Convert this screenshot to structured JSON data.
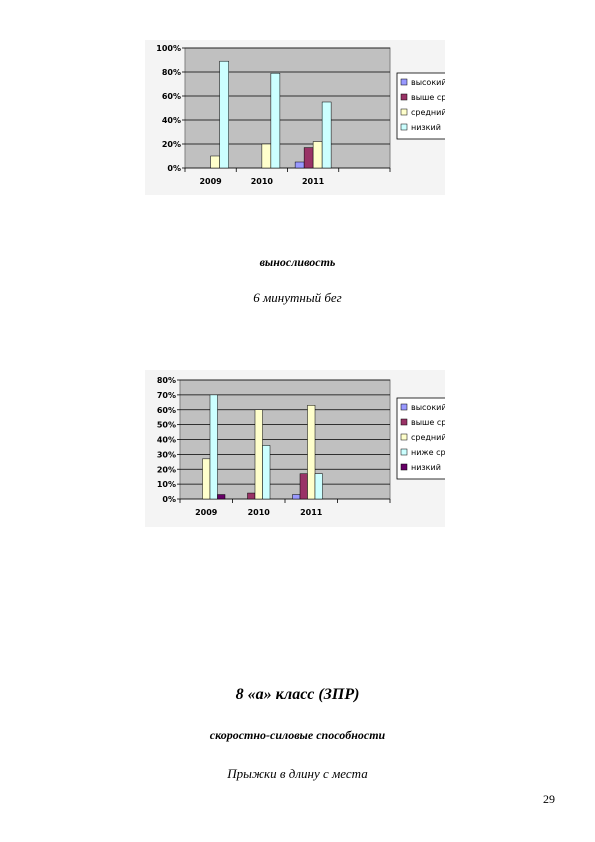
{
  "chart_data": [
    {
      "type": "bar",
      "categories": [
        "2009",
        "2010",
        "2011"
      ],
      "ylim": [
        0,
        100
      ],
      "yticks": [
        "0%",
        "20%",
        "40%",
        "60%",
        "80%",
        "100%"
      ],
      "ytick_values": [
        0,
        20,
        40,
        60,
        80,
        100
      ],
      "grid": true,
      "legend_position": "right",
      "series": [
        {
          "name": "высокий",
          "color": "#9999ff",
          "values": [
            0,
            0,
            5
          ]
        },
        {
          "name": "выше среднего",
          "color": "#993366",
          "values": [
            0,
            0,
            17
          ]
        },
        {
          "name": "средний",
          "color": "#ffffcc",
          "values": [
            10,
            20,
            22
          ]
        },
        {
          "name": "низкий",
          "color": "#ccffff",
          "values": [
            89,
            79,
            55
          ]
        }
      ]
    },
    {
      "type": "bar",
      "categories": [
        "2009",
        "2010",
        "2011"
      ],
      "ylim": [
        0,
        80
      ],
      "yticks": [
        "0%",
        "10%",
        "20%",
        "30%",
        "40%",
        "50%",
        "60%",
        "70%",
        "80%"
      ],
      "ytick_values": [
        0,
        10,
        20,
        30,
        40,
        50,
        60,
        70,
        80
      ],
      "grid": true,
      "legend_position": "right",
      "series": [
        {
          "name": "высокий",
          "color": "#9999ff",
          "values": [
            0,
            0,
            3
          ]
        },
        {
          "name": "выше среднего",
          "color": "#993366",
          "values": [
            0,
            4,
            17
          ]
        },
        {
          "name": "средний",
          "color": "#ffffcc",
          "values": [
            27,
            60,
            63
          ]
        },
        {
          "name": "ниже среднего",
          "color": "#ccffff",
          "values": [
            70,
            36,
            17
          ]
        },
        {
          "name": "низкий",
          "color": "#660066",
          "values": [
            3,
            0,
            0
          ]
        }
      ]
    }
  ],
  "captions": {
    "endurance": "выносливость",
    "run": "6 минутный бег",
    "class_heading": "8 «а» класс (ЗПР)",
    "speed_strength": "скоростно-силовые способности",
    "long_jump": "Прыжки в длину с места"
  },
  "page_number": "29",
  "colors": {
    "plot_background": "#c0c0c0",
    "frame_background": "#f4f4f4"
  }
}
